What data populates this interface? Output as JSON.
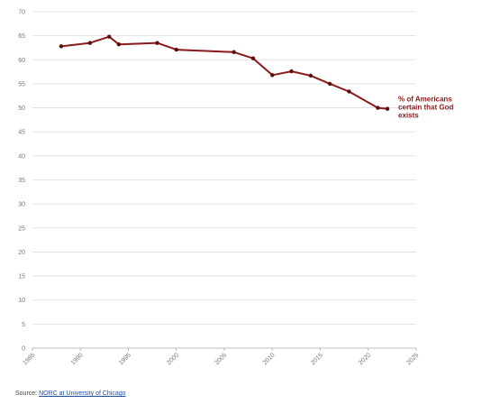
{
  "chart_data": {
    "type": "line",
    "x": [
      1988,
      1991,
      1993,
      1994,
      1998,
      2000,
      2006,
      2008,
      2010,
      2012,
      2014,
      2016,
      2018,
      2021,
      2022
    ],
    "series": [
      {
        "name": "% of Americans certain that God exists",
        "label_lines": [
          "% of Americans",
          "certain that God",
          "exists"
        ],
        "values": [
          62.8,
          63.5,
          64.8,
          63.2,
          63.5,
          62.1,
          61.6,
          60.3,
          56.8,
          57.6,
          56.7,
          55.0,
          53.4,
          50.0,
          49.8
        ]
      }
    ],
    "xlim": [
      1985,
      2025
    ],
    "ylim": [
      0,
      70
    ],
    "xticks": [
      "1985",
      "1990",
      "1995",
      "2000",
      "2005",
      "2010",
      "2015",
      "2020",
      "2025"
    ],
    "yticks": [
      "0",
      "5",
      "10",
      "15",
      "20",
      "25",
      "30",
      "35",
      "40",
      "45",
      "50",
      "55",
      "60",
      "65",
      "70"
    ],
    "grid": true,
    "line_color": "#8b1a1a",
    "marker_color": "#5a0f0f",
    "grid_color": "#dcdcdc"
  },
  "source": {
    "prefix": "Source: ",
    "link_text": "NORC at University of Chicago"
  }
}
